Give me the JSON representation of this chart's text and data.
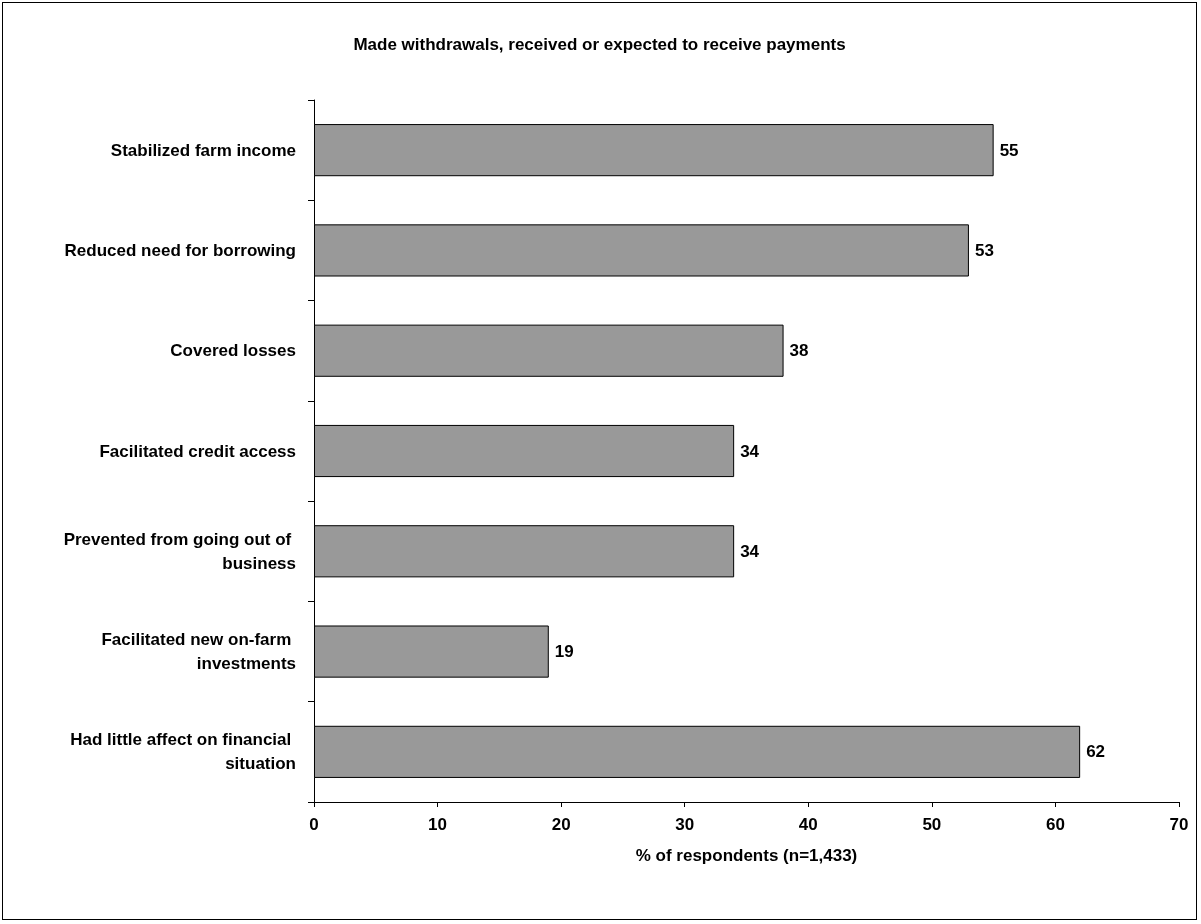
{
  "chart_data": {
    "type": "bar",
    "orientation": "horizontal",
    "title": "Made withdrawals, received or expected to receive payments",
    "xlabel": "% of respondents (n=1,433)",
    "categories": [
      "Stabilized farm income",
      "Reduced need for borrowing",
      "Covered losses",
      "Facilitated credit access",
      "Prevented from going out of business",
      "Facilitated new on-farm investments",
      "Had little affect on financial situation"
    ],
    "values": [
      55,
      53,
      38,
      34,
      34,
      19,
      62
    ],
    "color": "#999999",
    "xlim": [
      0,
      70
    ],
    "xticks": [
      0,
      10,
      20,
      30,
      40,
      50,
      60,
      70
    ],
    "grid": false,
    "data_labels": true
  }
}
